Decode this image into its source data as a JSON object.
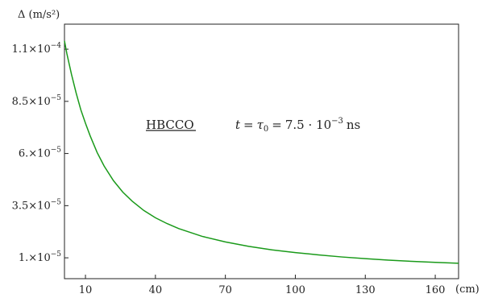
{
  "chart_data": {
    "type": "line",
    "title": "",
    "ylabel": "Δ (m/s²)",
    "xlabel": "(cm)",
    "xlim": [
      1,
      170
    ],
    "ylim": [
      0,
      0.000122
    ],
    "x_ticks": [
      10,
      40,
      70,
      100,
      130,
      160
    ],
    "y_ticks": [
      {
        "value": 1e-05,
        "mantissa": "1.",
        "exponent": "−5"
      },
      {
        "value": 3.5e-05,
        "mantissa": "3.5",
        "exponent": "−5"
      },
      {
        "value": 6e-05,
        "mantissa": "6.",
        "exponent": "−5"
      },
      {
        "value": 8.5e-05,
        "mantissa": "8.5",
        "exponent": "−5"
      },
      {
        "value": 0.00011,
        "mantissa": "1.1",
        "exponent": "−4"
      }
    ],
    "grid": false,
    "series": [
      {
        "color": "#1a9a1a",
        "x": [
          1,
          2,
          4,
          6,
          8,
          10,
          12,
          15,
          18,
          22,
          26,
          30,
          35,
          40,
          45,
          50,
          60,
          70,
          80,
          90,
          100,
          110,
          120,
          130,
          140,
          150,
          160,
          170
        ],
        "y": [
          0.000114,
          0.000108,
          9.8e-05,
          8.9e-05,
          8.1e-05,
          7.45e-05,
          6.85e-05,
          6.05e-05,
          5.4e-05,
          4.7e-05,
          4.15e-05,
          3.72e-05,
          3.27e-05,
          2.92e-05,
          2.64e-05,
          2.4e-05,
          2.03e-05,
          1.76e-05,
          1.55e-05,
          1.38e-05,
          1.25e-05,
          1.14e-05,
          1.04e-05,
          9.6e-06,
          8.9e-06,
          8.3e-06,
          7.8e-06,
          7.4e-06
        ]
      }
    ],
    "annotations": {
      "material": "HBCCO",
      "condition_lhs": "t",
      "condition_mid": "τ",
      "condition_sub": "0",
      "condition_value": "7.5 · 10",
      "condition_exp": "−3",
      "condition_unit": "ns"
    }
  }
}
